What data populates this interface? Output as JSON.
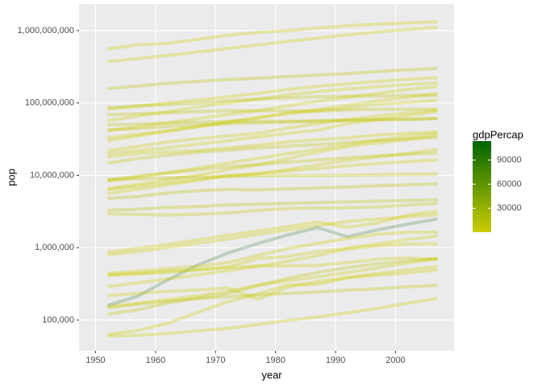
{
  "chart_data": {
    "type": "line",
    "x_label": "year",
    "y_label": "pop",
    "x": [
      1952,
      1957,
      1962,
      1967,
      1972,
      1977,
      1982,
      1987,
      1992,
      1997,
      2002,
      2007
    ],
    "xlim": [
      1947.25,
      2009.75
    ],
    "xticks": [
      1950,
      1960,
      1970,
      1980,
      1990,
      2000
    ],
    "ylim": [
      37700,
      2330000000
    ],
    "log_y": true,
    "yticks": [
      {
        "value": 100000,
        "label": "100,000"
      },
      {
        "value": 1000000,
        "label": "1,000,000"
      },
      {
        "value": 10000000,
        "label": "10,000,000"
      },
      {
        "value": 100000000,
        "label": "100,000,000"
      },
      {
        "value": 1000000000,
        "label": "1,000,000,000"
      }
    ],
    "grid": true,
    "line_alpha": 0.3,
    "colorbar": {
      "title": "gdpPercap",
      "limits": [
        241,
        113523
      ],
      "ticks": [
        30000,
        60000,
        90000
      ],
      "colors": [
        "#cccc00",
        "#006400"
      ]
    },
    "series": [
      {
        "color": "#cccc00",
        "values": [
          556000000,
          637000000,
          666000000,
          755000000,
          863000000,
          943000000,
          1000000000,
          1084000000,
          1165000000,
          1230000000,
          1280000000,
          1319000000
        ]
      },
      {
        "color": "#cccc00",
        "values": [
          372000000,
          410000000,
          454000000,
          506000000,
          567000000,
          634000000,
          708000000,
          788000000,
          872000000,
          959000000,
          1034000000,
          1110000000
        ]
      },
      {
        "color": "#b8c000",
        "values": [
          158000000,
          171000000,
          187000000,
          199000000,
          210000000,
          220000000,
          232000000,
          243000000,
          256000000,
          272000000,
          287000000,
          301000000
        ]
      },
      {
        "color": "#cccc00",
        "values": [
          82000000,
          90000000,
          100000000,
          110000000,
          121000000,
          136000000,
          153000000,
          170000000,
          184000000,
          199000000,
          212000000,
          224000000
        ]
      },
      {
        "color": "#cccc00",
        "values": [
          57000000,
          66000000,
          76000000,
          88000000,
          100000000,
          112000000,
          129000000,
          143000000,
          156000000,
          168000000,
          180000000,
          190000000
        ]
      },
      {
        "color": "#c0c400",
        "values": [
          86000000,
          91000000,
          95000000,
          100000000,
          107000000,
          114000000,
          118000000,
          122000000,
          124000000,
          125000000,
          127000000,
          127000000
        ]
      },
      {
        "color": "#cccc00",
        "values": [
          33000000,
          37000000,
          41000000,
          47000000,
          53000000,
          62000000,
          73000000,
          81000000,
          93000000,
          107000000,
          120000000,
          135000000
        ]
      },
      {
        "color": "#c0c400",
        "values": [
          69000000,
          71000000,
          73000000,
          76000000,
          78000000,
          78000000,
          78000000,
          77000000,
          80000000,
          82000000,
          82000000,
          82000000
        ]
      },
      {
        "color": "#cccc00",
        "values": [
          30000000,
          35000000,
          41000000,
          47000000,
          55000000,
          63000000,
          71000000,
          78000000,
          85000000,
          96000000,
          102000000,
          109000000
        ]
      },
      {
        "color": "#c0c400",
        "values": [
          50000000,
          51000000,
          53000000,
          54000000,
          56000000,
          56000000,
          56000000,
          57000000,
          58000000,
          59000000,
          59000000,
          61000000
        ]
      },
      {
        "color": "#cccc00",
        "values": [
          20000000,
          22000000,
          24000000,
          27000000,
          30000000,
          34000000,
          38000000,
          42000000,
          52000000,
          59000000,
          67000000,
          76000000
        ]
      },
      {
        "color": "#cccc00",
        "values": [
          22000000,
          25000000,
          29000000,
          32000000,
          35000000,
          38000000,
          45000000,
          52000000,
          59000000,
          66000000,
          73000000,
          80000000
        ]
      },
      {
        "color": "#cccc00",
        "values": [
          18000000,
          20000000,
          21000000,
          22000000,
          24000000,
          26000000,
          29000000,
          31000000,
          33000000,
          36000000,
          38000000,
          40000000
        ]
      },
      {
        "color": "#cccc00",
        "values": [
          6500000,
          7500000,
          8700000,
          10000000,
          12000000,
          14000000,
          17000000,
          21000000,
          25000000,
          28000000,
          31000000,
          36000000
        ]
      },
      {
        "color": "#cccc00",
        "values": [
          5600000,
          6400000,
          7400000,
          8500000,
          9900000,
          10500000,
          12000000,
          14000000,
          16000000,
          18000000,
          20000000,
          23000000
        ]
      },
      {
        "color": "#c0c400",
        "values": [
          8700000,
          8900000,
          9200000,
          9600000,
          9700000,
          9800000,
          9900000,
          9900000,
          10000000,
          10200000,
          10300000,
          10400000
        ]
      },
      {
        "color": "#b8c000",
        "values": [
          4800000,
          5100000,
          5700000,
          6100000,
          6400000,
          6300000,
          6500000,
          6700000,
          6900000,
          7200000,
          7400000,
          7600000
        ]
      },
      {
        "color": "#b8c000",
        "values": [
          3300000,
          3400000,
          3600000,
          3700000,
          3900000,
          4000000,
          4100000,
          4200000,
          4300000,
          4400000,
          4500000,
          4600000
        ]
      },
      {
        "color": "#cccc00",
        "values": [
          800000,
          880000,
          1010000,
          1150000,
          1320000,
          1530000,
          1760000,
          2020000,
          2310000,
          2490000,
          2670000,
          2870000
        ]
      },
      {
        "color": "#4f8f5a",
        "values": [
          160000,
          212846,
          358266,
          575003,
          841934,
          1140357,
          1497494,
          1891487,
          1418095,
          1765345,
          2111561,
          2505559
        ]
      },
      {
        "color": "#c0c400",
        "values": [
          120447,
          138655,
          171863,
          202182,
          230800,
          297410,
          377967,
          454612,
          529491,
          598561,
          656397,
          708573
        ]
      },
      {
        "color": "#c0c400",
        "values": [
          147962,
          165110,
          182053,
          198676,
          209275,
          221823,
          233997,
          244676,
          259012,
          271192,
          288030,
          301931
        ]
      },
      {
        "color": "#cccc00",
        "values": [
          63149,
          71851,
          89898,
          127617,
          178848,
          228694,
          305991,
          311025,
          384156,
          417908,
          447416,
          496374
        ]
      },
      {
        "color": "#cccc00",
        "values": [
          60011,
          61325,
          65345,
          70787,
          76595,
          86796,
          98593,
          110812,
          125911,
          145608,
          170372,
          199579
        ]
      },
      {
        "color": "#cccc00",
        "values": [
          216964,
          232922,
          249220,
          259864,
          277603,
          192675,
          285483,
          341244,
          387838,
          439971,
          495627,
          551201
        ]
      },
      {
        "color": "#cccc00",
        "values": [
          413834,
          442829,
          474528,
          501035,
          527678,
          560073,
          562548,
          569473,
          621621,
          692651,
          720230,
          684736
        ]
      },
      {
        "color": "#cccc00",
        "values": [
          153936,
          170928,
          191689,
          217378,
          250027,
          304739,
          348643,
          395114,
          454429,
          527982,
          614382,
          710960
        ]
      },
      {
        "color": "#cccc00",
        "values": [
          290243,
          326741,
          370006,
          420690,
          480105,
          551425,
          649901,
          779348,
          962344,
          1054486,
          1130269,
          1133066
        ]
      },
      {
        "color": "#cccc00",
        "values": [
          420702,
          434904,
          455661,
          489004,
          537977,
          706367,
          753874,
          880397,
          985739,
          1126189,
          1299304,
          1454867
        ]
      },
      {
        "color": "#cccc00",
        "values": [
          442308,
          474639,
          512764,
          553541,
          619351,
          781472,
          970347,
          1151184,
          1342614,
          1536536,
          1630347,
          1639131
        ]
      },
      {
        "color": "#c0c400",
        "values": [
          14785584,
          17010154,
          18985849,
          20819767,
          22284500,
          23796400,
          25201900,
          26549700,
          28523502,
          30305843,
          31902268,
          33390141
        ]
      },
      {
        "color": "#c0c400",
        "values": [
          42459667,
          44310863,
          47124000,
          49569000,
          51732000,
          53165019,
          54433565,
          55630100,
          57374179,
          58623428,
          59925035,
          61083916
        ]
      },
      {
        "color": "#cccc00",
        "values": [
          41346560,
          46679944,
          53100671,
          60641899,
          69325921,
          78152686,
          91462088,
          105186881,
          120065004,
          135564834,
          153403524,
          169270617
        ]
      },
      {
        "color": "#c0c400",
        "values": [
          8691212,
          9712569,
          10794968,
          11872264,
          13177000,
          14074100,
          15184200,
          16257249,
          17481977,
          18565243,
          19546792,
          20434176
        ]
      },
      {
        "color": "#cccc00",
        "values": [
          863308,
          975950,
          1112796,
          1279406,
          1482628,
          1703617,
          1956875,
          2269414,
          1912974,
          2200725,
          2814651,
          3193942
        ]
      },
      {
        "color": "#c4c600",
        "values": [
          2952156,
          2878220,
          2830000,
          2900100,
          3024400,
          3271900,
          3480000,
          3539900,
          3557761,
          3667233,
          3879155,
          4109086
        ]
      },
      {
        "color": "#cccc00",
        "values": [
          6377619,
          7048426,
          7961258,
          8858908,
          9717524,
          10599793,
          11487112,
          12463354,
          13572994,
          14599929,
          15497046,
          16284741
        ]
      },
      {
        "color": "#cccc00",
        "values": [
          8322925,
          9452826,
          10863958,
          12607312,
          14706593,
          17129565,
          19844382,
          23040630,
          26605473,
          30686889,
          34593779,
          38139640
        ]
      }
    ]
  }
}
